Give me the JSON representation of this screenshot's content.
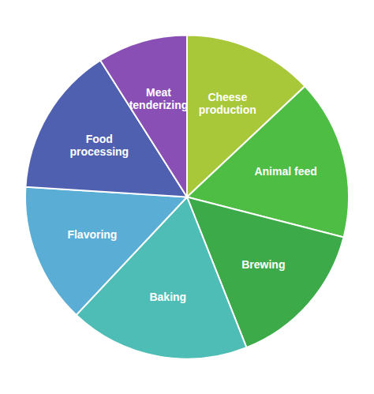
{
  "chart_data": {
    "type": "pie",
    "categories": [
      "Cheese\nproduction",
      "Animal feed",
      "Brewing",
      "Baking",
      "Flavoring",
      "Food\nprocessing",
      "Meat\ntenderizing"
    ],
    "values": [
      13,
      16,
      15,
      18,
      14,
      15,
      9
    ],
    "colors": [
      "#A8C83A",
      "#4DBD44",
      "#3DAA4A",
      "#4DBDB5",
      "#5AADD4",
      "#5060B0",
      "#8A4FB5"
    ]
  }
}
